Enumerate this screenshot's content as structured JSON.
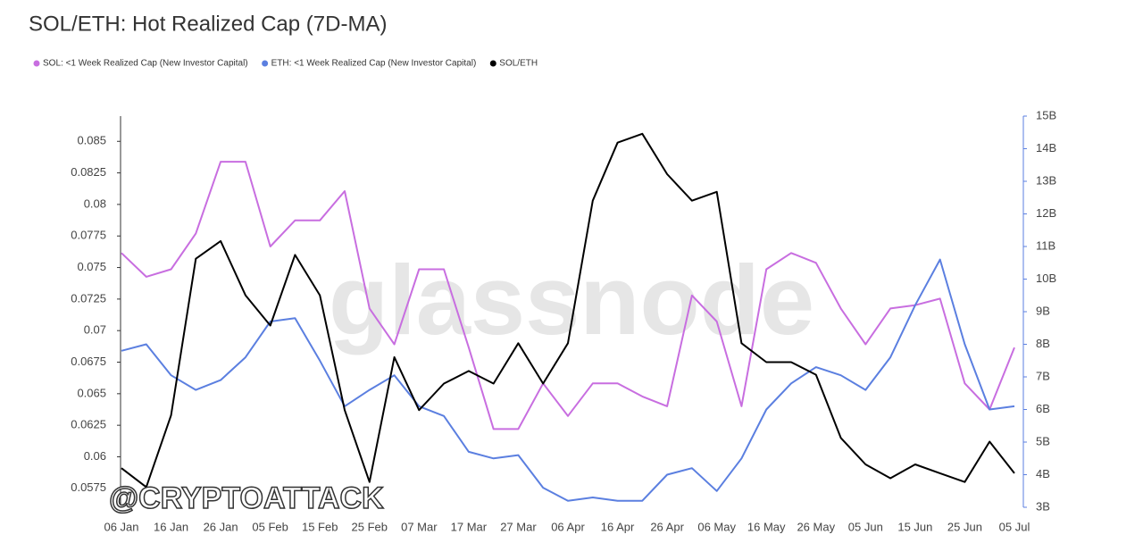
{
  "chart_data": {
    "type": "line",
    "title": "SOL/ETH: Hot Realized Cap (7D-MA)",
    "watermarks": [
      "glassnode",
      "@CRYPTOATTACK"
    ],
    "categories": [
      "06 Jan",
      null,
      "16 Jan",
      null,
      "26 Jan",
      null,
      "05 Feb",
      null,
      "15 Feb",
      null,
      "25 Feb",
      null,
      "07 Mar",
      null,
      "17 Mar",
      null,
      "27 Mar",
      null,
      "06 Apr",
      null,
      "16 Apr",
      null,
      "26 Apr",
      null,
      "06 May",
      null,
      "16 May",
      null,
      "26 May",
      null,
      "05 Jun",
      null,
      "15 Jun",
      null,
      "25 Jun",
      null,
      "05 Jul"
    ],
    "series": [
      {
        "name": "SOL: <1 Week Realized Cap (New Investor Capital)",
        "color": "#c86ee0",
        "axis": "y2",
        "values": [
          10.8,
          10.07,
          10.3,
          11.4,
          13.6,
          13.6,
          11.0,
          11.8,
          11.8,
          12.7,
          9.1,
          8.0,
          10.3,
          10.3,
          7.9,
          5.4,
          5.4,
          6.8,
          5.8,
          6.8,
          6.8,
          6.4,
          6.1,
          9.5,
          8.7,
          6.1,
          10.3,
          10.8,
          10.5,
          9.1,
          8.0,
          9.1,
          9.2,
          9.4,
          6.8,
          6.0,
          7.9
        ]
      },
      {
        "name": "ETH: <1 Week Realized Cap (New Investor Capital)",
        "color": "#5b7fe0",
        "axis": "y2",
        "values": [
          7.8,
          8.0,
          7.05,
          6.6,
          6.9,
          7.6,
          8.7,
          8.8,
          7.5,
          6.1,
          6.6,
          7.05,
          6.1,
          5.8,
          4.7,
          4.5,
          4.6,
          3.6,
          3.2,
          3.3,
          3.2,
          3.2,
          4.0,
          4.2,
          3.5,
          4.5,
          6.0,
          6.8,
          7.3,
          7.05,
          6.6,
          7.6,
          9.2,
          10.6,
          8.0,
          6.0,
          6.1
        ]
      },
      {
        "name": "SOL/ETH",
        "color": "#000000",
        "axis": "y",
        "values": [
          0.0591,
          0.0576,
          0.0633,
          0.0757,
          0.0771,
          0.0728,
          0.0704,
          0.076,
          0.0728,
          0.0637,
          0.058,
          0.0679,
          0.0637,
          0.0658,
          0.0668,
          0.0658,
          0.069,
          0.0658,
          0.069,
          0.0803,
          0.0849,
          0.0856,
          0.0824,
          0.0803,
          0.081,
          0.069,
          0.0675,
          0.0675,
          0.0665,
          0.0615,
          0.0594,
          0.0583,
          0.0594,
          0.0587,
          0.058,
          0.0612,
          0.0587
        ]
      }
    ],
    "ylim": [
      0.056,
      0.087
    ],
    "yticks": [
      0.0575,
      0.06,
      0.0625,
      0.065,
      0.0675,
      0.07,
      0.0725,
      0.075,
      0.0775,
      0.08,
      0.0825,
      0.085
    ],
    "y2lim": [
      3,
      15
    ],
    "y2ticks": [
      {
        "value": 3,
        "label": "3B"
      },
      {
        "value": 4,
        "label": "4B"
      },
      {
        "value": 5,
        "label": "5B"
      },
      {
        "value": 6,
        "label": "6B"
      },
      {
        "value": 7,
        "label": "7B"
      },
      {
        "value": 8,
        "label": "8B"
      },
      {
        "value": 9,
        "label": "9B"
      },
      {
        "value": 10,
        "label": "10B"
      },
      {
        "value": 11,
        "label": "11B"
      },
      {
        "value": 12,
        "label": "12B"
      },
      {
        "value": 13,
        "label": "13B"
      },
      {
        "value": 14,
        "label": "14B"
      },
      {
        "value": 15,
        "label": "15B"
      }
    ],
    "grid": false,
    "legend": "top-left"
  }
}
